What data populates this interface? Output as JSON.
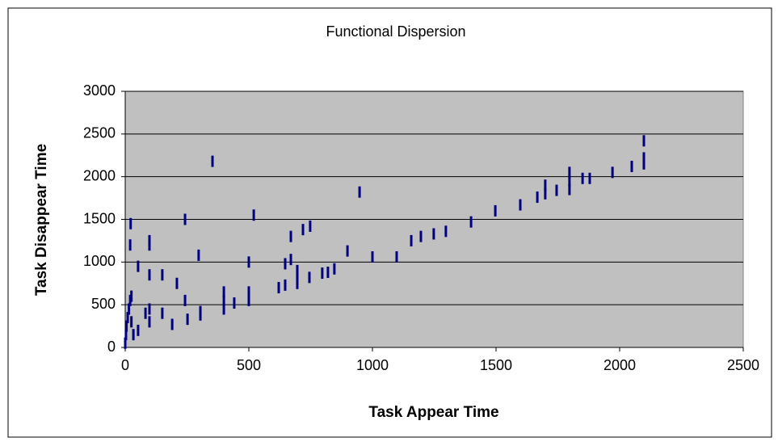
{
  "chart_data": {
    "type": "scatter",
    "title": "Functional Dispersion",
    "xlabel": "Task Appear Time",
    "ylabel": "Task Disappear Time",
    "x": [
      0,
      3,
      5,
      10,
      15,
      20,
      20,
      22,
      25,
      25,
      33,
      52,
      52,
      82,
      98,
      98,
      98,
      98,
      98,
      150,
      150,
      190,
      209,
      242,
      242,
      252,
      297,
      304,
      304,
      353,
      399,
      399,
      399,
      441,
      500,
      500,
      500,
      520,
      621,
      647,
      647,
      670,
      670,
      696,
      696,
      696,
      719,
      745,
      748,
      797,
      820,
      846,
      899,
      948,
      1000,
      1098,
      1157,
      1196,
      1248,
      1297,
      1399,
      1497,
      1598,
      1667,
      1699,
      1699,
      1745,
      1797,
      1797,
      1797,
      1850,
      1879,
      1971,
      2049,
      2098,
      2098,
      2098
    ],
    "values": [
      50,
      150,
      250,
      350,
      450,
      550,
      1200,
      1450,
      600,
      300,
      150,
      200,
      950,
      400,
      300,
      450,
      850,
      1200,
      1250,
      400,
      850,
      270,
      750,
      550,
      1500,
      330,
      1080,
      380,
      420,
      2180,
      450,
      650,
      550,
      520,
      550,
      650,
      1000,
      1550,
      700,
      730,
      980,
      1030,
      1300,
      750,
      850,
      900,
      1380,
      820,
      1420,
      870,
      880,
      920,
      1130,
      1820,
      1060,
      1060,
      1250,
      1300,
      1330,
      1360,
      1470,
      1600,
      1670,
      1760,
      1800,
      1900,
      1840,
      1850,
      1950,
      2050,
      1980,
      1980,
      2050,
      2120,
      2150,
      2220,
      2420
    ],
    "color": "#000080",
    "plot_background": "#c0c0c0",
    "xlim": [
      0,
      2500
    ],
    "xticks": [
      0,
      500,
      1000,
      1500,
      2000,
      2500
    ],
    "ylim": [
      0,
      3000
    ],
    "yticks": [
      0,
      500,
      1000,
      1500,
      2000,
      2500,
      3000
    ],
    "grid": true
  }
}
